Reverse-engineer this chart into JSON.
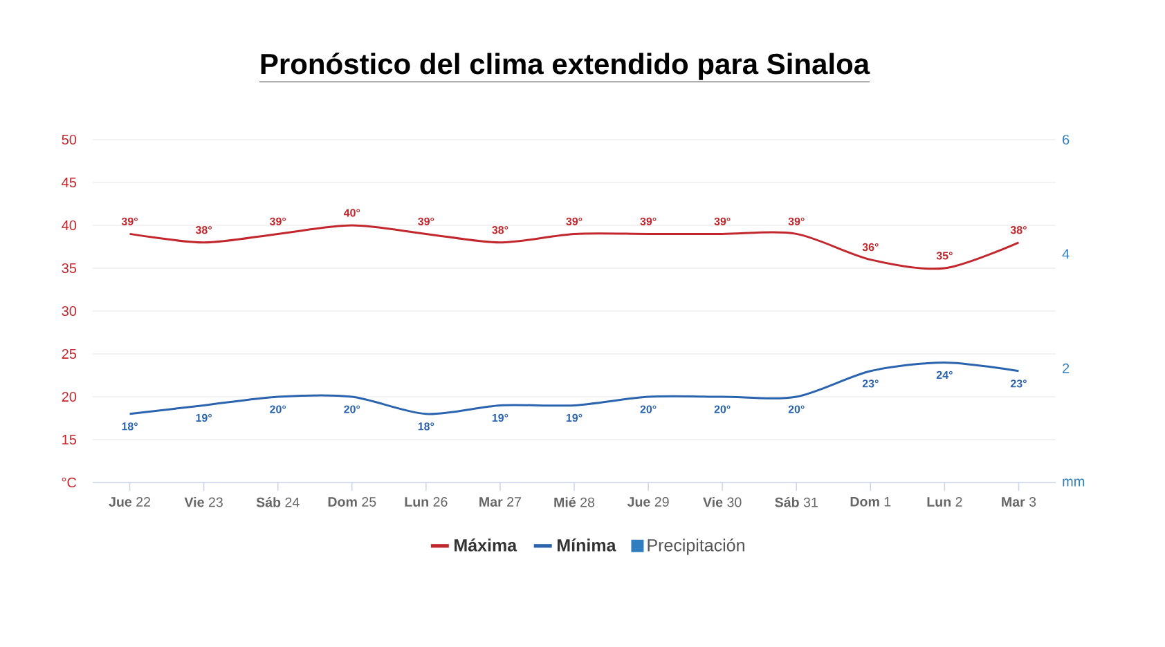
{
  "chart_data": {
    "type": "line",
    "title": "Pronóstico del clima extendido para Sinaloa",
    "categories": [
      "**Jue** 22",
      "**Vie** 23",
      "**Sáb** 24",
      "**Dom** 25",
      "**Lun** 26",
      "**Mar** 27",
      "**Mié** 28",
      "**Jue** 29",
      "**Vie** 30",
      "**Sáb** 31",
      "**Dom** 1",
      "**Lun** 2",
      "**Mar** 3"
    ],
    "series": [
      {
        "name": "Máxima",
        "color": "#c1272d",
        "values": [
          39,
          38,
          39,
          40,
          39,
          38,
          39,
          39,
          39,
          39,
          36,
          35,
          38
        ],
        "value_labels": [
          "39°",
          "38°",
          "39°",
          "40°",
          "39°",
          "38°",
          "39°",
          "39°",
          "39°",
          "39°",
          "36°",
          "35°",
          "38°"
        ]
      },
      {
        "name": "Mínima",
        "color": "#2b64ae",
        "values": [
          18,
          19,
          20,
          20,
          18,
          19,
          19,
          20,
          20,
          20,
          23,
          24,
          23
        ],
        "value_labels": [
          "18°",
          "19°",
          "20°",
          "20°",
          "18°",
          "19°",
          "19°",
          "20°",
          "20°",
          "20°",
          "23°",
          "24°",
          "23°"
        ]
      },
      {
        "name": "Precipitación",
        "type": "bar",
        "axis": "y2",
        "color": "#2f7ec0",
        "values": [
          null,
          null,
          null,
          null,
          null,
          null,
          null,
          null,
          null,
          null,
          null,
          null,
          null
        ]
      }
    ],
    "ylim": [
      10,
      50
    ],
    "yticks": [
      {
        "value": 10,
        "label": "°C"
      },
      15,
      20,
      25,
      30,
      35,
      40,
      45,
      50
    ],
    "y2lim": [
      0,
      6
    ],
    "y2ticks": [
      {
        "value": 0,
        "label": "mm"
      },
      2,
      4,
      6
    ],
    "grid": "y",
    "legend": "bottom",
    "marker": "none"
  }
}
